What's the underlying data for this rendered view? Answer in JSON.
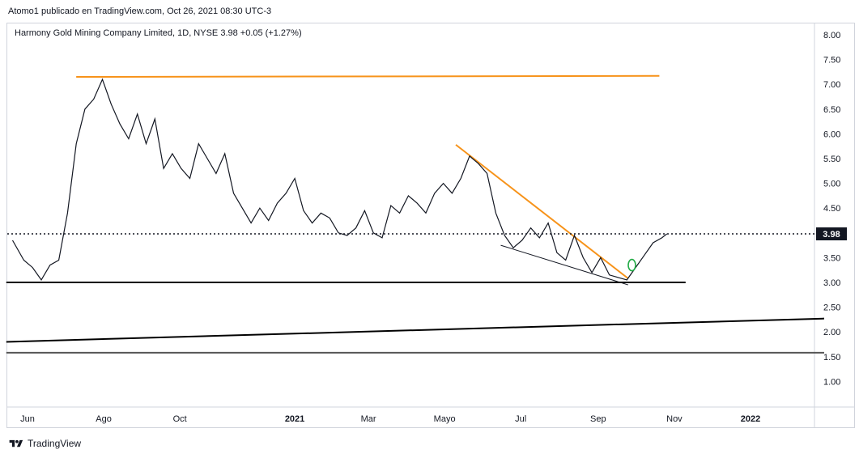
{
  "header": {
    "published_by": "Atomo1 publicado en TradingView.com, Oct 26, 2021 08:30 UTC-3"
  },
  "symbol_line": "Harmony Gold Mining Company Limited, 1D, NYSE  3.98  +0.05 (+1.27%)",
  "footer": {
    "brand": "TradingView",
    "logo_icon": "tradingview-logo-icon"
  },
  "colors": {
    "price_line": "#131722",
    "resistance": "#f7931a",
    "support": "#000000",
    "marker": "#22ab46",
    "price_tag_bg": "#131722",
    "price_tag_text": "#ffffff"
  },
  "chart_data": {
    "type": "line",
    "title": "Harmony Gold Mining Company Limited, 1D, NYSE",
    "xlabel": "",
    "ylabel": "",
    "ylim": [
      0.5,
      8.2
    ],
    "y_ticks": [
      "8.00",
      "7.50",
      "7.00",
      "6.50",
      "6.00",
      "5.50",
      "5.00",
      "4.50",
      "4.00",
      "3.50",
      "3.00",
      "2.50",
      "2.00",
      "1.50",
      "1.00"
    ],
    "x_ticks": [
      "Jun",
      "Ago",
      "Oct",
      "2021",
      "Mar",
      "Mayo",
      "Jul",
      "Sep",
      "Nov",
      "2022"
    ],
    "last_price": 3.98,
    "last_price_label": "3.98",
    "series": [
      {
        "x": [
          "2020-05-20",
          "2020-05-29",
          "2020-06-05",
          "2020-06-12",
          "2020-06-19",
          "2020-06-26",
          "2020-07-03",
          "2020-07-10",
          "2020-07-17",
          "2020-07-24",
          "2020-07-31",
          "2020-08-07",
          "2020-08-14",
          "2020-08-21",
          "2020-08-28",
          "2020-09-04",
          "2020-09-11",
          "2020-09-18",
          "2020-09-25",
          "2020-10-02",
          "2020-10-09",
          "2020-10-16",
          "2020-10-23",
          "2020-10-30",
          "2020-11-06",
          "2020-11-13",
          "2020-11-20",
          "2020-11-27",
          "2020-12-04",
          "2020-12-11",
          "2020-12-18",
          "2020-12-25",
          "2021-01-01",
          "2021-01-08",
          "2021-01-15",
          "2021-01-22",
          "2021-01-29",
          "2021-02-05",
          "2021-02-12",
          "2021-02-19",
          "2021-02-26",
          "2021-03-05",
          "2021-03-12",
          "2021-03-19",
          "2021-03-26",
          "2021-04-02",
          "2021-04-09",
          "2021-04-16",
          "2021-04-23",
          "2021-04-30",
          "2021-05-07",
          "2021-05-14",
          "2021-05-21",
          "2021-05-28",
          "2021-06-04",
          "2021-06-11",
          "2021-06-18",
          "2021-06-25",
          "2021-07-02",
          "2021-07-09",
          "2021-07-16",
          "2021-07-23",
          "2021-07-30",
          "2021-08-06",
          "2021-08-13",
          "2021-08-20",
          "2021-08-27",
          "2021-09-03",
          "2021-09-10",
          "2021-09-17",
          "2021-09-24",
          "2021-10-01",
          "2021-10-08",
          "2021-10-15",
          "2021-10-22",
          "2021-10-26"
        ],
        "y": [
          3.85,
          3.45,
          3.3,
          3.05,
          3.35,
          3.45,
          4.4,
          5.8,
          6.5,
          6.7,
          7.1,
          6.6,
          6.2,
          5.9,
          6.4,
          5.8,
          6.3,
          5.3,
          5.6,
          5.3,
          5.1,
          5.8,
          5.5,
          5.2,
          5.6,
          4.8,
          4.5,
          4.2,
          4.5,
          4.25,
          4.6,
          4.8,
          5.1,
          4.45,
          4.2,
          4.4,
          4.3,
          4.0,
          3.95,
          4.1,
          4.45,
          4.0,
          3.9,
          4.55,
          4.4,
          4.75,
          4.6,
          4.4,
          4.8,
          5.0,
          4.8,
          5.1,
          5.55,
          5.4,
          5.2,
          4.4,
          3.95,
          3.7,
          3.85,
          4.1,
          3.9,
          4.2,
          3.6,
          3.45,
          3.95,
          3.5,
          3.2,
          3.5,
          3.15,
          3.1,
          3.05,
          3.3,
          3.55,
          3.8,
          3.9,
          3.98
        ]
      }
    ],
    "trendlines": [
      {
        "kind": "resistance",
        "from": [
          "2020-07-10",
          7.15
        ],
        "to": [
          "2021-10-20",
          7.17
        ]
      },
      {
        "kind": "downtrend",
        "from": [
          "2021-05-10",
          5.78
        ],
        "to": [
          "2021-09-25",
          3.08
        ]
      },
      {
        "kind": "lower-wedge",
        "from": [
          "2021-06-15",
          3.75
        ],
        "to": [
          "2021-09-25",
          2.95
        ]
      },
      {
        "kind": "support",
        "from": [
          "2020-05-15",
          3.0
        ],
        "to": [
          "2021-11-10",
          3.0
        ]
      },
      {
        "kind": "long-term-support",
        "from": [
          "2020-05-15",
          1.8
        ],
        "to": [
          "2022-03-01",
          2.27
        ]
      },
      {
        "kind": "horizontal",
        "from": [
          "2020-05-15",
          1.58
        ],
        "to": [
          "2022-03-01",
          1.58
        ]
      }
    ],
    "breakout_marker": {
      "x": "2021-09-28",
      "y": 3.35
    },
    "grid": false,
    "legend": "none"
  }
}
